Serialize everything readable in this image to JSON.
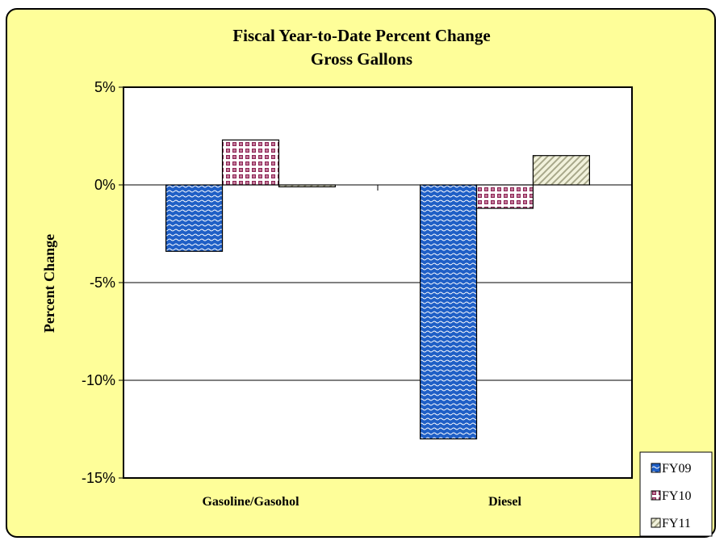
{
  "chart_data": {
    "type": "bar",
    "title": [
      "Fiscal Year-to-Date Percent Change",
      "Gross Gallons"
    ],
    "ylabel": "Percent Change",
    "xlabel": "",
    "categories": [
      "Gasoline/Gasohol",
      "Diesel"
    ],
    "series": [
      {
        "name": "FY09",
        "values": [
          -3.4,
          -13.0
        ],
        "color": "#1f5fc6",
        "pattern": "wave"
      },
      {
        "name": "FY10",
        "values": [
          2.3,
          -1.2
        ],
        "color": "#8b2252",
        "pattern": "checker"
      },
      {
        "name": "FY11",
        "values": [
          -0.1,
          1.5
        ],
        "color": "#d8d8a8",
        "pattern": "diagonal"
      }
    ],
    "ylim": [
      -15,
      5
    ],
    "yticks": [
      5,
      0,
      -5,
      -10,
      -15
    ],
    "ytick_labels": [
      "5%",
      "0%",
      "-5%",
      "-10%",
      "-15%"
    ],
    "grid": true,
    "legend_position": "bottom-right",
    "background_color": "#fefe99",
    "plot_background": "#ffffff"
  }
}
